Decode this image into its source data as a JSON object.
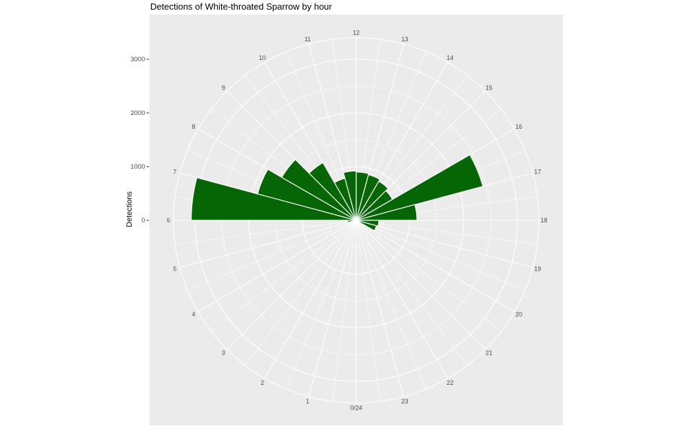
{
  "title": "Detections of White-throated Sparrow by hour",
  "y_axis": {
    "title": "Detections"
  },
  "chart_data": {
    "type": "polar_bar",
    "title": "Detections of White-throated Sparrow by hour",
    "ylabel": "Detections",
    "theta_unit": "hour of day",
    "orientation": "hour 12 at top, hours increase clockwise, 0/24 at bottom",
    "categories": [
      0,
      1,
      2,
      3,
      4,
      5,
      6,
      7,
      8,
      9,
      10,
      11,
      12,
      13,
      14,
      15,
      16,
      17,
      18,
      19,
      20,
      21,
      22,
      23
    ],
    "category_labels": [
      "0/24",
      "1",
      "2",
      "3",
      "4",
      "5",
      "6",
      "7",
      "8",
      "9",
      "10",
      "11",
      "12",
      "13",
      "14",
      "15",
      "16",
      "17",
      "18",
      "19",
      "20",
      "21",
      "22",
      "23"
    ],
    "values": [
      0,
      0,
      0,
      0,
      0,
      160,
      3070,
      1900,
      1600,
      1240,
      810,
      920,
      900,
      880,
      840,
      780,
      2440,
      1130,
      420,
      390,
      0,
      0,
      0,
      0
    ],
    "r_ticks": [
      0,
      1000,
      2000,
      3000
    ],
    "r_minor_ticks": [
      500,
      1500,
      2500
    ],
    "rlim": [
      0,
      3400
    ],
    "grid": true,
    "legend": "none",
    "bar_color": "#066606",
    "panel_bg": "#EBEBEB",
    "grid_color": "#FFFFFF",
    "label_color": "#4D4D4D",
    "tick_mark_color": "#333333"
  }
}
